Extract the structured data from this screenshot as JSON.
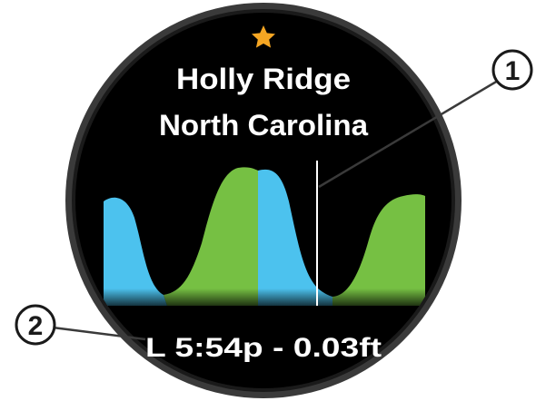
{
  "screen": {
    "favorite_icon": "star-icon",
    "location_line1": "Holly Ridge",
    "location_line2": "North Carolina",
    "tide_event": "L 5:54p - 0.03ft"
  },
  "callouts": [
    {
      "number": "1"
    },
    {
      "number": "2"
    }
  ],
  "colors": {
    "bezel": "#3a3a3a",
    "face": "#000000",
    "rising_tide": "#4cc2ee",
    "falling_tide": "#76c043",
    "star": "#f5a623",
    "current_time_line": "#ffffff"
  }
}
